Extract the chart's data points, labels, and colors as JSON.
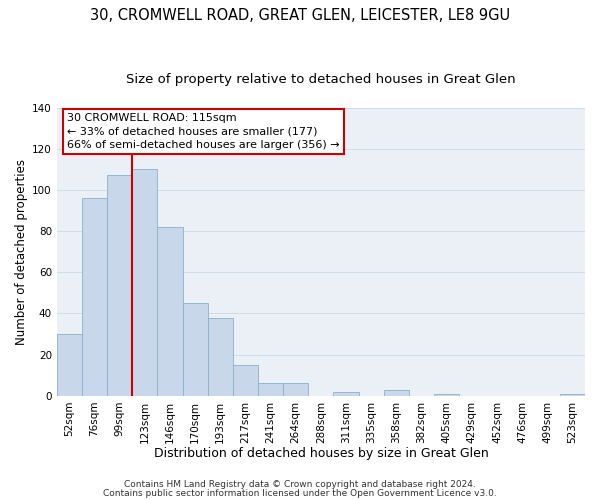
{
  "title1": "30, CROMWELL ROAD, GREAT GLEN, LEICESTER, LE8 9GU",
  "title2": "Size of property relative to detached houses in Great Glen",
  "xlabel": "Distribution of detached houses by size in Great Glen",
  "ylabel": "Number of detached properties",
  "bar_labels": [
    "52sqm",
    "76sqm",
    "99sqm",
    "123sqm",
    "146sqm",
    "170sqm",
    "193sqm",
    "217sqm",
    "241sqm",
    "264sqm",
    "288sqm",
    "311sqm",
    "335sqm",
    "358sqm",
    "382sqm",
    "405sqm",
    "429sqm",
    "452sqm",
    "476sqm",
    "499sqm",
    "523sqm"
  ],
  "bar_values": [
    30,
    96,
    107,
    110,
    82,
    45,
    38,
    15,
    6,
    6,
    0,
    2,
    0,
    3,
    0,
    1,
    0,
    0,
    0,
    0,
    1
  ],
  "bar_color": "#c8d8ea",
  "bar_edge_color": "#8ab0cc",
  "grid_color": "#d0dce8",
  "property_line_label": "30 CROMWELL ROAD: 115sqm",
  "annotation_text1": "← 33% of detached houses are smaller (177)",
  "annotation_text2": "66% of semi-detached houses are larger (356) →",
  "annotation_box_color": "#ffffff",
  "annotation_box_edge_color": "#cc0000",
  "property_line_color": "#cc0000",
  "bg_color": "#eaf0f6",
  "ylim": [
    0,
    140
  ],
  "yticks": [
    0,
    20,
    40,
    60,
    80,
    100,
    120,
    140
  ],
  "footer1": "Contains HM Land Registry data © Crown copyright and database right 2024.",
  "footer2": "Contains public sector information licensed under the Open Government Licence v3.0.",
  "title1_fontsize": 10.5,
  "title2_fontsize": 9.5,
  "xlabel_fontsize": 9,
  "ylabel_fontsize": 8.5,
  "tick_fontsize": 7.5,
  "annotation_fontsize": 8,
  "footer_fontsize": 6.5
}
